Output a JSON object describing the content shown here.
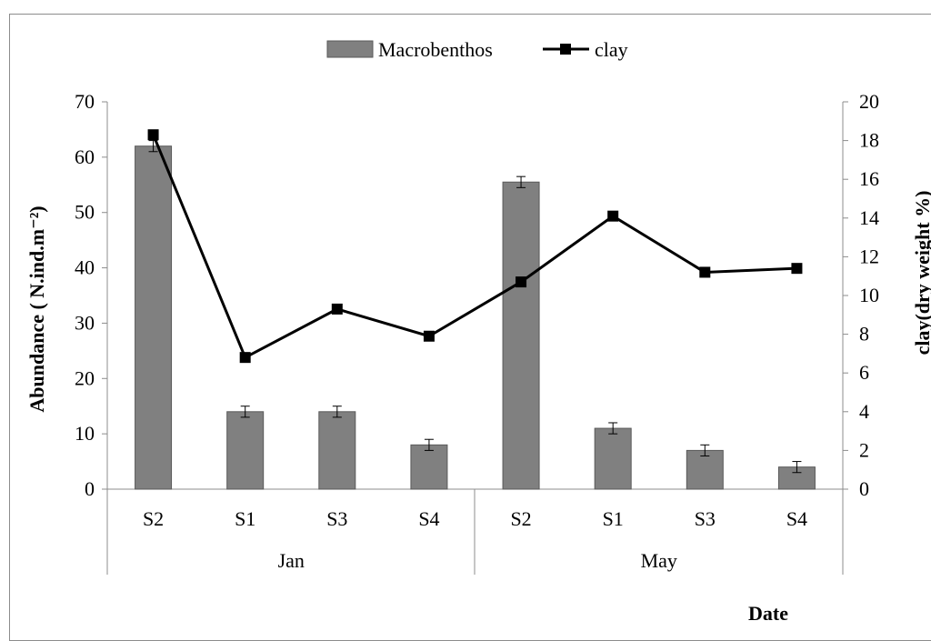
{
  "chart_data": {
    "type": "bar",
    "categories": [
      "S2",
      "S1",
      "S3",
      "S4",
      "S2",
      "S1",
      "S3",
      "S4"
    ],
    "groups": [
      {
        "label": "Jan",
        "count": 4
      },
      {
        "label": "May",
        "count": 4
      }
    ],
    "series": [
      {
        "name": "Macrobenthos",
        "type": "bar",
        "axis": "left",
        "values": [
          62,
          14,
          14,
          8,
          55.5,
          11,
          7,
          4
        ],
        "errors": [
          1,
          1,
          1,
          1,
          1,
          1,
          1,
          1
        ],
        "color": "#808080"
      },
      {
        "name": "clay",
        "type": "line",
        "axis": "right",
        "marker": "square",
        "values": [
          18.3,
          6.8,
          9.3,
          7.9,
          10.7,
          14.1,
          11.2,
          11.4
        ],
        "color": "#000000"
      }
    ],
    "ylabel": "Abundance ( N.ind.m⁻²)",
    "y2label": "clay(dry weight %)",
    "xlabel": "Date",
    "ylim": [
      0,
      70
    ],
    "yticks": [
      "0",
      "10",
      "20",
      "30",
      "40",
      "50",
      "60",
      "70"
    ],
    "y2lim": [
      0,
      20
    ],
    "y2ticks": [
      "0",
      "2",
      "4",
      "6",
      "8",
      "10",
      "12",
      "14",
      "16",
      "18",
      "20"
    ],
    "legend": "top",
    "grid": false
  }
}
